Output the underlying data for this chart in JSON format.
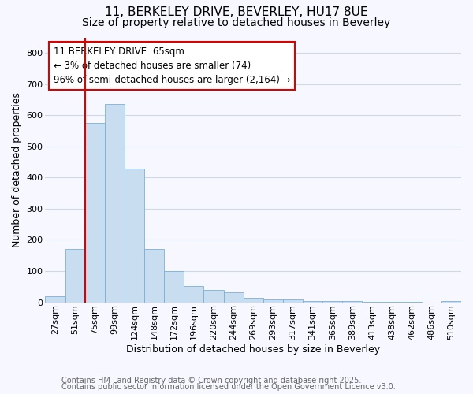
{
  "title_line1": "11, BERKELEY DRIVE, BEVERLEY, HU17 8UE",
  "title_line2": "Size of property relative to detached houses in Beverley",
  "xlabel": "Distribution of detached houses by size in Beverley",
  "ylabel": "Number of detached properties",
  "footnote_line1": "Contains HM Land Registry data © Crown copyright and database right 2025.",
  "footnote_line2": "Contains public sector information licensed under the Open Government Licence v3.0.",
  "bar_labels": [
    "27sqm",
    "51sqm",
    "75sqm",
    "99sqm",
    "124sqm",
    "148sqm",
    "172sqm",
    "196sqm",
    "220sqm",
    "244sqm",
    "269sqm",
    "293sqm",
    "317sqm",
    "341sqm",
    "365sqm",
    "389sqm",
    "413sqm",
    "438sqm",
    "462sqm",
    "486sqm",
    "510sqm"
  ],
  "bar_values": [
    18,
    170,
    575,
    635,
    430,
    170,
    100,
    52,
    40,
    32,
    15,
    10,
    9,
    5,
    4,
    3,
    2,
    1,
    1,
    0,
    5
  ],
  "bar_color": "#c9ddf0",
  "bar_edge_color": "#7ab0d8",
  "ylim_max": 850,
  "yticks": [
    0,
    100,
    200,
    300,
    400,
    500,
    600,
    700,
    800
  ],
  "vline_color": "#dd0000",
  "annotation_text": "11 BERKELEY DRIVE: 65sqm\n← 3% of detached houses are smaller (74)\n96% of semi-detached houses are larger (2,164) →",
  "annotation_box_facecolor": "white",
  "annotation_box_edgecolor": "#dd0000",
  "background_color": "#f7f8ff",
  "grid_color": "#d0d8e8",
  "title_fontsize": 11,
  "subtitle_fontsize": 10,
  "axis_label_fontsize": 9,
  "tick_fontsize": 8,
  "annotation_fontsize": 8.5,
  "footnote_fontsize": 7,
  "bin_starts": [
    27,
    51,
    75,
    99,
    124,
    148,
    172,
    196,
    220,
    244,
    269,
    293,
    317,
    341,
    365,
    389,
    413,
    438,
    462,
    486,
    510
  ],
  "property_sqm": 65
}
